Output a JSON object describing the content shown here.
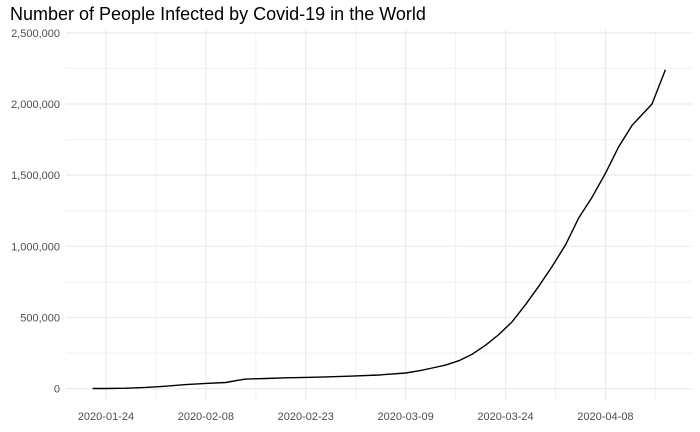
{
  "chart_data": {
    "type": "line",
    "title": "Number of People Infected by Covid-19 in the World",
    "xlabel": "",
    "ylabel": "",
    "x_start": "2020-01-22",
    "x_end": "2020-04-17",
    "xlim": [
      "2020-01-18",
      "2020-04-21"
    ],
    "ylim": [
      -80000,
      2520000
    ],
    "x_ticks": [
      "2020-01-24",
      "2020-02-08",
      "2020-02-23",
      "2020-03-09",
      "2020-03-24",
      "2020-04-08"
    ],
    "y_ticks": [
      0,
      500000,
      1000000,
      1500000,
      2000000,
      2500000
    ],
    "y_tick_labels": [
      "0",
      "500,000",
      "1,000,000",
      "1,500,000",
      "2,000,000",
      "2,500,000"
    ],
    "grid": true,
    "line_color": "#000000",
    "series": [
      {
        "x": [
          "2020-01-22",
          "2020-01-24",
          "2020-01-27",
          "2020-01-30",
          "2020-02-02",
          "2020-02-05",
          "2020-02-08",
          "2020-02-11",
          "2020-02-13",
          "2020-02-14",
          "2020-02-17",
          "2020-02-20",
          "2020-02-23",
          "2020-02-26",
          "2020-03-01",
          "2020-03-05",
          "2020-03-09",
          "2020-03-11",
          "2020-03-13",
          "2020-03-15",
          "2020-03-17",
          "2020-03-19",
          "2020-03-21",
          "2020-03-23",
          "2020-03-25",
          "2020-03-27",
          "2020-03-29",
          "2020-03-31",
          "2020-04-02",
          "2020-04-04",
          "2020-04-06",
          "2020-04-08",
          "2020-04-10",
          "2020-04-12",
          "2020-04-15",
          "2020-04-17"
        ],
        "values": [
          555,
          900,
          3000,
          8200,
          17000,
          28000,
          37000,
          43000,
          60000,
          67000,
          71000,
          76000,
          79000,
          82000,
          88000,
          96000,
          110000,
          125000,
          145000,
          165000,
          196000,
          242000,
          305000,
          380000,
          470000,
          590000,
          720000,
          858000,
          1010000,
          1200000,
          1345000,
          1512000,
          1700000,
          1850000,
          2000000,
          2240000
        ]
      }
    ]
  }
}
